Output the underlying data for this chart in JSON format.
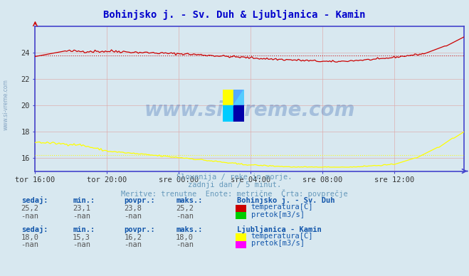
{
  "title": "Bohinjsko j. - Sv. Duh & Ljubljanica - Kamin",
  "title_color": "#0000cc",
  "background_color": "#d8e8f0",
  "plot_bg_color": "#d8e8f0",
  "xlabel_ticks": [
    "tor 16:00",
    "tor 20:00",
    "sre 00:00",
    "sre 04:00",
    "sre 08:00",
    "sre 12:00"
  ],
  "yticks": [
    16,
    18,
    20,
    22,
    24
  ],
  "grid_color": "#ddaaaa",
  "axis_color": "#4444cc",
  "watermark_text": "www.si-vreme.com",
  "subtitle_lines": [
    "Slovenija / reke in morje.",
    "zadnji dan / 5 minut.",
    "Meritve: trenutne  Enote: metrične  Črta: povprečje"
  ],
  "subtitle_color": "#6699bb",
  "bohinjsko_temp_color": "#cc0000",
  "bohinjsko_temp_avg": 23.8,
  "bohinjsko_temp_min": 23.1,
  "bohinjsko_temp_max": 25.2,
  "ljubljanica_temp_color": "#ffff00",
  "ljubljanica_temp_avg": 16.2,
  "ljubljanica_temp_min": 15.3,
  "ljubljanica_temp_max": 18.0,
  "label_color": "#1155aa",
  "value_color": "#555555",
  "station1_name": "Bohinjsko j. - Sv. Duh",
  "station2_name": "Ljubljanica - Kamin",
  "col_headers": [
    "sedaj:",
    "min.:",
    "povpr.:",
    "maks.:"
  ],
  "station1_row1": [
    "25,2",
    "23,1",
    "23,8",
    "25,2"
  ],
  "station1_row2": [
    "-nan",
    "-nan",
    "-nan",
    "-nan"
  ],
  "station1_legend": [
    "temperatura[C]",
    "pretok[m3/s]"
  ],
  "station1_legend_colors": [
    "#cc0000",
    "#00cc00"
  ],
  "station2_row1": [
    "18,0",
    "15,3",
    "16,2",
    "18,0"
  ],
  "station2_row2": [
    "-nan",
    "-nan",
    "-nan",
    "-nan"
  ],
  "station2_legend": [
    "temperatura[C]",
    "pretok[m3/s]"
  ],
  "station2_legend_colors": [
    "#ffff00",
    "#ff00ff"
  ],
  "n_points": 288,
  "ylim_min": 15.0,
  "ylim_max": 26.0,
  "logo_colors": [
    "#ffff00",
    "#00ccff",
    "#00aaff",
    "#0000cc"
  ]
}
